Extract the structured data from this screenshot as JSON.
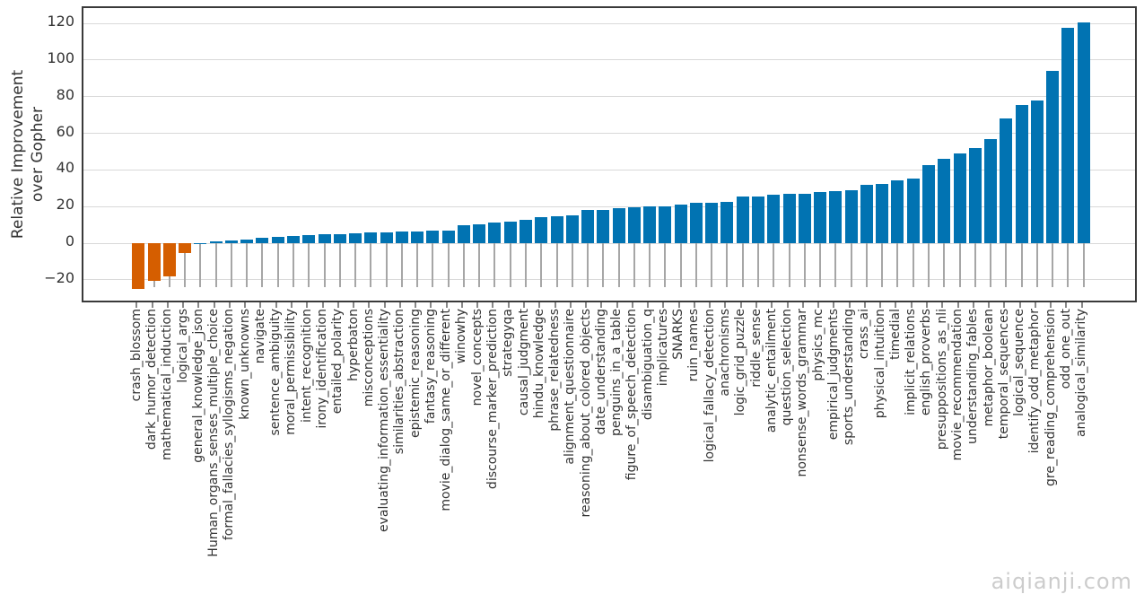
{
  "watermark": "aiqianji.com",
  "chart_data": {
    "type": "bar",
    "title": "",
    "xlabel": "",
    "ylabel": "Relative Improvement\nover Gopher",
    "ylim": [
      -33.3,
      128.3
    ],
    "yticks": [
      -20,
      0,
      20,
      40,
      60,
      80,
      100,
      120
    ],
    "grid": "horizontal-light-gray",
    "legend": "none",
    "bar_colors": {
      "positive": "#0173b2",
      "negative": "#d55e00"
    },
    "stem_color": "#a6a6a6",
    "categories": [
      "crash_blossom",
      "dark_humor_detection",
      "mathematical_induction",
      "logical_args",
      "general_knowledge_json",
      "Human_organs_senses_multiple_choice",
      "formal_fallacies_syllogisms_negation",
      "known_unknowns",
      "navigate",
      "sentence_ambiguity",
      "moral_permissibility",
      "intent_recognition",
      "irony_identification",
      "entailed_polarity",
      "hyperbaton",
      "misconceptions",
      "evaluating_information_essentiality",
      "similarities_abstraction",
      "epistemic_reasoning",
      "fantasy_reasoning",
      "movie_dialog_same_or_different",
      "winowhy",
      "novel_concepts",
      "discourse_marker_prediction",
      "strategyqa",
      "causal_judgment",
      "hindu_knowledge",
      "phrase_relatedness",
      "alignment_questionnaire",
      "reasoning_about_colored_objects",
      "date_understanding",
      "penguins_in_a_table",
      "figure_of_speech_detection",
      "disambiguation_q",
      "implicatures",
      "SNARKS",
      "ruin_names",
      "logical_fallacy_detection",
      "anachronisms",
      "logic_grid_puzzle",
      "riddle_sense",
      "analytic_entailment",
      "question_selection",
      "nonsense_words_grammar",
      "physics_mc",
      "empirical_judgments",
      "sports_understanding",
      "crass_ai",
      "physical_intuition",
      "timedial",
      "implicit_relations",
      "english_proverbs",
      "presuppositions_as_nli",
      "movie_recommendation",
      "understanding_fables",
      "metaphor_boolean",
      "temporal_sequences",
      "logical_sequence",
      "identify_odd_metaphor",
      "gre_reading_comprehension",
      "odd_one_out",
      "analogical_similarity"
    ],
    "values": [
      -24.8,
      -20.7,
      -18.0,
      -5.4,
      0.2,
      0.8,
      1.5,
      2.2,
      2.7,
      3.4,
      3.9,
      4.3,
      4.7,
      5.1,
      5.5,
      5.8,
      6.1,
      6.3,
      6.5,
      6.8,
      7.1,
      9.6,
      10.4,
      11.4,
      11.8,
      12.6,
      14.2,
      14.7,
      15.0,
      18.0,
      18.3,
      19.3,
      19.6,
      19.9,
      20.3,
      21.0,
      21.8,
      22.1,
      22.4,
      25.3,
      25.6,
      26.3,
      26.8,
      27.1,
      28.1,
      28.4,
      28.8,
      31.8,
      32.1,
      34.3,
      35.3,
      42.4,
      46.0,
      49.0,
      52.1,
      56.7,
      67.9,
      75.6,
      77.7,
      94.0,
      117.5,
      120.3
    ]
  }
}
